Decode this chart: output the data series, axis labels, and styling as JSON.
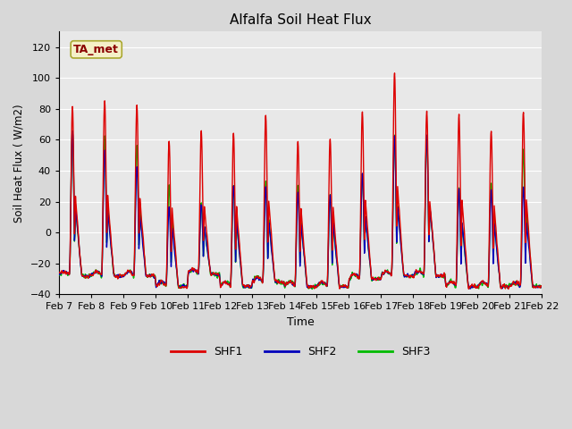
{
  "title": "Alfalfa Soil Heat Flux",
  "xlabel": "Time",
  "ylabel": "Soil Heat Flux ( W/m2)",
  "ylim": [
    -40,
    130
  ],
  "yticks": [
    -40,
    -20,
    0,
    20,
    40,
    60,
    80,
    100,
    120
  ],
  "xlim": [
    0,
    15
  ],
  "annotation_text": "TA_met",
  "annotation_bbox_facecolor": "#f5f0c8",
  "annotation_bbox_edgecolor": "#aaa830",
  "annotation_text_color": "#8b0000",
  "line_colors": {
    "SHF1": "#dd0000",
    "SHF2": "#0000bb",
    "SHF3": "#00bb00"
  },
  "line_width": 1.0,
  "background_color": "#d8d8d8",
  "plot_bg_color": "#e8e8e8",
  "grid_color": "#ffffff",
  "xtick_labels": [
    "Feb 7",
    "Feb 8",
    "Feb 9",
    "Feb 10",
    "Feb 11",
    "Feb 12",
    "Feb 13",
    "Feb 14",
    "Feb 15",
    "Feb 16",
    "Feb 17",
    "Feb 18",
    "Feb 19",
    "Feb 20",
    "Feb 21",
    "Feb 22"
  ],
  "legend_entries": [
    "SHF1",
    "SHF2",
    "SHF3"
  ],
  "figsize": [
    6.4,
    4.8
  ],
  "dpi": 100
}
